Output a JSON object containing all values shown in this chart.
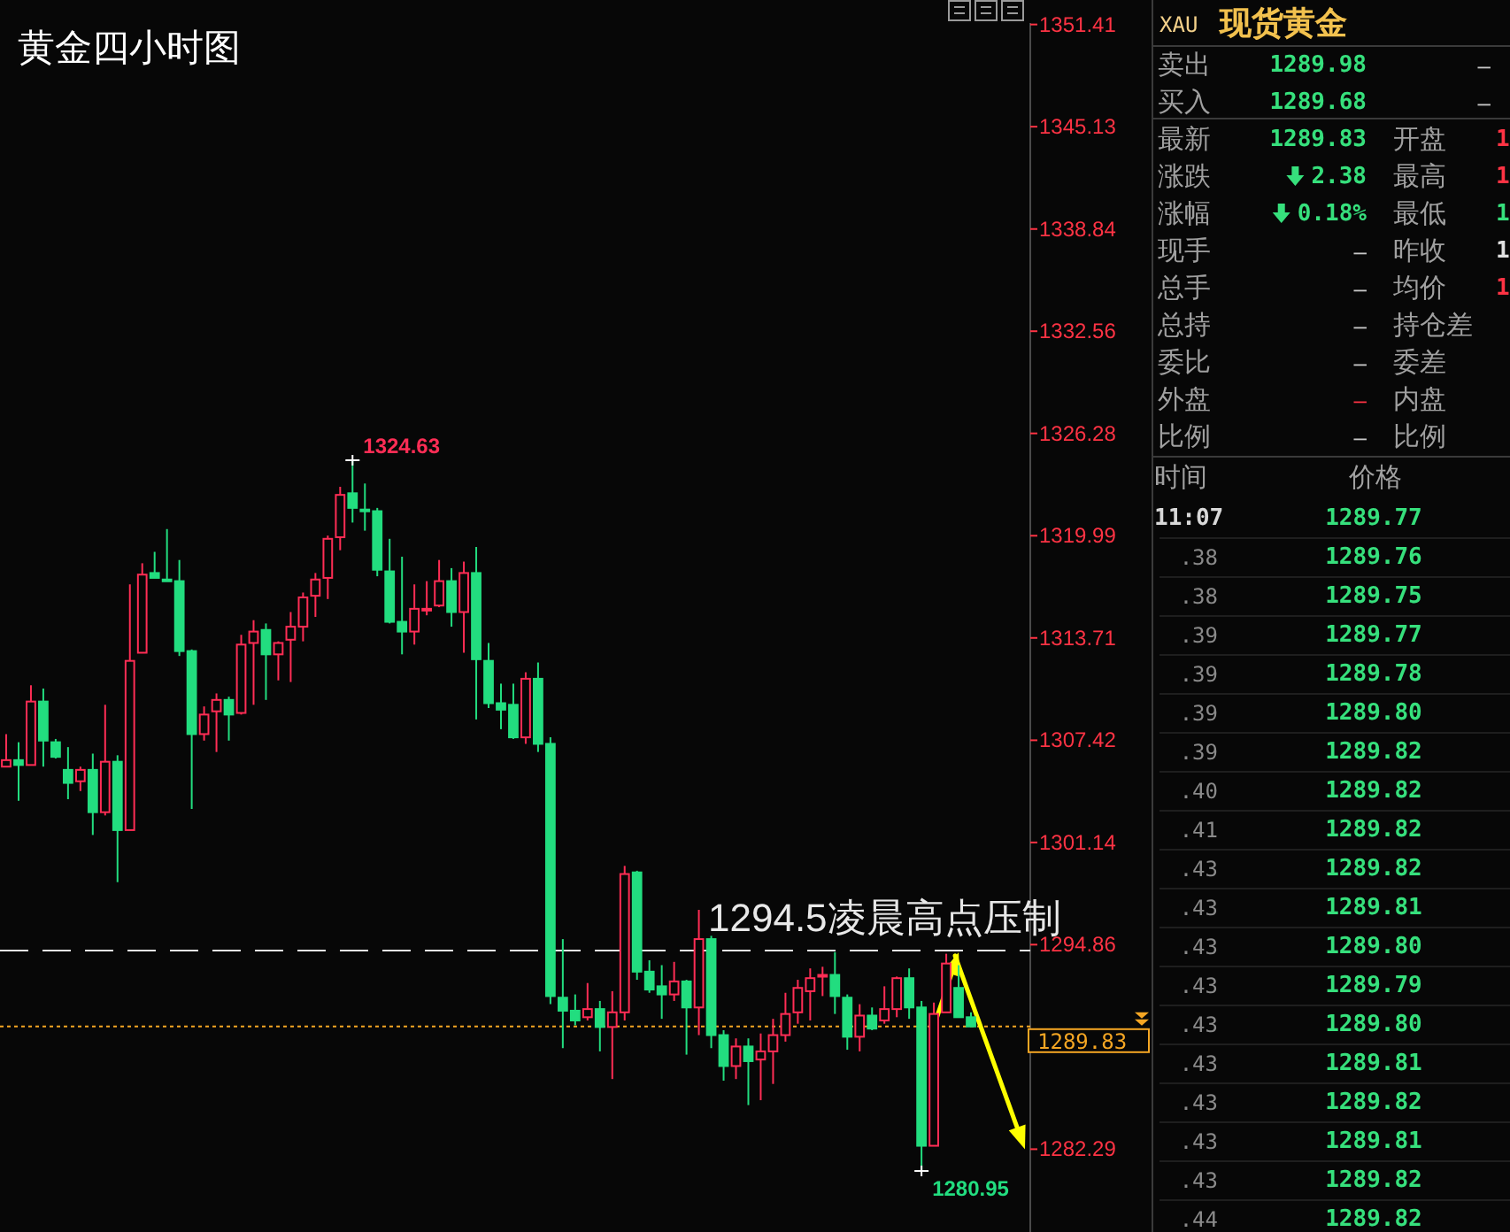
{
  "chart_data": [
    {
      "type": "candlestick",
      "title": "黄金四小时图",
      "categories": [
        null,
        null,
        null,
        null,
        null,
        null,
        null,
        null,
        null,
        null,
        null,
        null,
        null,
        null,
        null,
        null,
        null,
        null,
        null,
        null,
        null,
        null,
        null,
        null,
        null,
        null,
        null,
        null,
        null,
        null,
        null,
        null,
        null,
        null,
        null,
        null,
        null,
        null,
        null,
        null,
        null,
        null,
        null,
        null,
        null,
        null,
        null,
        null,
        null,
        null,
        null,
        null,
        null,
        null,
        null,
        null,
        null,
        null,
        null,
        null,
        null,
        null,
        null,
        null,
        null,
        null,
        null,
        null,
        null,
        null,
        null,
        null,
        null,
        null,
        null,
        null,
        null,
        null,
        null
      ],
      "ohlc": [
        [
          1305.8,
          1307.8,
          1305.8,
          1306.2
        ],
        [
          1306.2,
          1307.3,
          1303.7,
          1305.9
        ],
        [
          1305.9,
          1310.8,
          1305.9,
          1309.8
        ],
        [
          1309.8,
          1310.6,
          1305.8,
          1307.4
        ],
        [
          1307.3,
          1307.5,
          1306.3,
          1306.4
        ],
        [
          1305.6,
          1307.0,
          1303.8,
          1304.8
        ],
        [
          1304.9,
          1305.8,
          1304.3,
          1305.6
        ],
        [
          1305.6,
          1306.6,
          1301.6,
          1303.0
        ],
        [
          1303.0,
          1309.6,
          1302.8,
          1306.1
        ],
        [
          1306.1,
          1306.5,
          1298.7,
          1301.9
        ],
        [
          1301.9,
          1317.0,
          1301.9,
          1312.3
        ],
        [
          1312.8,
          1318.3,
          1312.8,
          1317.6
        ],
        [
          1317.7,
          1319.0,
          1317.4,
          1317.4
        ],
        [
          1317.3,
          1320.4,
          1317.2,
          1317.2
        ],
        [
          1317.2,
          1318.5,
          1312.6,
          1312.9
        ],
        [
          1312.9,
          1313.0,
          1303.2,
          1307.8
        ],
        [
          1307.8,
          1309.5,
          1307.4,
          1309.0
        ],
        [
          1309.2,
          1310.3,
          1306.7,
          1309.9
        ],
        [
          1309.9,
          1310.1,
          1307.4,
          1309.0
        ],
        [
          1309.1,
          1313.9,
          1309.0,
          1313.3
        ],
        [
          1313.4,
          1314.8,
          1309.6,
          1314.1
        ],
        [
          1314.2,
          1314.6,
          1309.9,
          1312.7
        ],
        [
          1312.7,
          1313.5,
          1311.1,
          1313.4
        ],
        [
          1313.6,
          1315.3,
          1311.0,
          1314.4
        ],
        [
          1314.4,
          1316.5,
          1313.5,
          1316.2
        ],
        [
          1316.3,
          1317.7,
          1315.0,
          1317.3
        ],
        [
          1317.4,
          1320.0,
          1316.1,
          1319.8
        ],
        [
          1319.9,
          1323.0,
          1319.1,
          1322.5
        ],
        [
          1322.6,
          1324.63,
          1320.8,
          1321.7
        ],
        [
          1321.6,
          1323.2,
          1320.3,
          1321.5
        ],
        [
          1321.5,
          1321.7,
          1317.5,
          1317.9
        ],
        [
          1317.8,
          1319.8,
          1314.6,
          1314.7
        ],
        [
          1314.7,
          1318.7,
          1312.7,
          1314.1
        ],
        [
          1314.1,
          1317.0,
          1313.3,
          1315.5
        ],
        [
          1315.4,
          1317.2,
          1315.1,
          1315.5
        ],
        [
          1315.7,
          1318.5,
          1315.6,
          1317.2
        ],
        [
          1317.2,
          1318.0,
          1314.4,
          1315.3
        ],
        [
          1315.3,
          1318.4,
          1312.8,
          1317.7
        ],
        [
          1317.7,
          1319.3,
          1308.7,
          1312.4
        ],
        [
          1312.3,
          1313.4,
          1309.4,
          1309.7
        ],
        [
          1309.7,
          1310.9,
          1308.1,
          1309.3
        ],
        [
          1309.6,
          1310.9,
          1307.5,
          1307.6
        ],
        [
          1307.6,
          1311.6,
          1307.2,
          1311.2
        ],
        [
          1311.2,
          1312.2,
          1306.7,
          1307.2
        ],
        [
          1307.2,
          1307.6,
          1291.2,
          1291.7
        ],
        [
          1291.6,
          1295.2,
          1288.5,
          1290.8
        ],
        [
          1290.8,
          1291.8,
          1289.9,
          1290.2
        ],
        [
          1290.4,
          1292.5,
          1290.2,
          1290.9
        ],
        [
          1290.9,
          1291.4,
          1288.3,
          1289.8
        ],
        [
          1289.8,
          1292.0,
          1286.6,
          1290.7
        ],
        [
          1290.7,
          1299.7,
          1290.2,
          1299.2
        ],
        [
          1299.3,
          1299.4,
          1292.7,
          1293.2
        ],
        [
          1293.2,
          1293.9,
          1291.9,
          1292.1
        ],
        [
          1292.3,
          1293.6,
          1290.3,
          1291.8
        ],
        [
          1291.8,
          1293.8,
          1291.4,
          1292.6
        ],
        [
          1292.6,
          1292.7,
          1288.1,
          1291.0
        ],
        [
          1291.0,
          1297.0,
          1289.3,
          1295.2
        ],
        [
          1295.2,
          1295.4,
          1288.5,
          1289.3
        ],
        [
          1289.3,
          1289.6,
          1286.5,
          1287.4
        ],
        [
          1287.4,
          1289.1,
          1286.6,
          1288.6
        ],
        [
          1288.6,
          1289.1,
          1285.0,
          1287.7
        ],
        [
          1287.8,
          1289.4,
          1285.3,
          1288.3
        ],
        [
          1288.3,
          1290.3,
          1286.3,
          1289.3
        ],
        [
          1289.3,
          1291.9,
          1288.9,
          1290.6
        ],
        [
          1290.7,
          1292.7,
          1290.0,
          1292.2
        ],
        [
          1292.0,
          1293.4,
          1290.2,
          1292.8
        ],
        [
          1292.9,
          1293.5,
          1291.7,
          1293.0
        ],
        [
          1293.0,
          1294.4,
          1290.6,
          1291.7
        ],
        [
          1291.6,
          1291.8,
          1288.4,
          1289.2
        ],
        [
          1289.2,
          1291.2,
          1288.3,
          1290.5
        ],
        [
          1290.5,
          1291.0,
          1289.6,
          1289.7
        ],
        [
          1290.2,
          1292.3,
          1290.0,
          1290.9
        ],
        [
          1290.9,
          1292.9,
          1290.4,
          1292.8
        ],
        [
          1292.8,
          1293.4,
          1290.3,
          1291.0
        ],
        [
          1291.0,
          1291.4,
          1280.95,
          1282.5
        ],
        [
          1282.5,
          1291.3,
          1282.5,
          1290.6
        ],
        [
          1290.7,
          1294.3,
          1290.7,
          1293.7
        ],
        [
          1292.2,
          1293.6,
          1290.4,
          1290.4
        ],
        [
          1290.4,
          1290.7,
          1289.83,
          1289.83
        ]
      ],
      "colors": [
        "#ff2d55",
        "#22dd7f",
        "#ff2d55",
        "#22dd7f",
        "#22dd7f",
        "#22dd7f",
        "#ff2d55",
        "#22dd7f",
        "#ff2d55",
        "#22dd7f",
        "#ff2d55",
        "#ff2d55",
        "#22dd7f",
        "#22dd7f",
        "#22dd7f",
        "#22dd7f",
        "#ff2d55",
        "#ff2d55",
        "#22dd7f",
        "#ff2d55",
        "#ff2d55",
        "#22dd7f",
        "#ff2d55",
        "#ff2d55",
        "#ff2d55",
        "#ff2d55",
        "#ff2d55",
        "#ff2d55",
        "#22dd7f",
        "#22dd7f",
        "#22dd7f",
        "#22dd7f",
        "#22dd7f",
        "#ff2d55",
        "#ff2d55",
        "#ff2d55",
        "#22dd7f",
        "#ff2d55",
        "#22dd7f",
        "#22dd7f",
        "#22dd7f",
        "#22dd7f",
        "#ff2d55",
        "#22dd7f",
        "#22dd7f",
        "#22dd7f",
        "#22dd7f",
        "#ff2d55",
        "#22dd7f",
        "#ff2d55",
        "#ff2d55",
        "#22dd7f",
        "#22dd7f",
        "#22dd7f",
        "#ff2d55",
        "#22dd7f",
        "#ff2d55",
        "#22dd7f",
        "#22dd7f",
        "#ff2d55",
        "#22dd7f",
        "#ff2d55",
        "#ff2d55",
        "#ff2d55",
        "#ff2d55",
        "#ff2d55",
        "#ff2d55",
        "#22dd7f",
        "#22dd7f",
        "#ff2d55",
        "#22dd7f",
        "#ff2d55",
        "#ff2d55",
        "#22dd7f",
        "#22dd7f",
        "#ff2d55",
        "#ff2d55",
        "#22dd7f",
        "#22dd7f"
      ],
      "ylim": [
        1277.2,
        1351.5
      ],
      "yticks": [
        1351.41,
        1345.13,
        1338.84,
        1332.56,
        1326.28,
        1319.99,
        1313.71,
        1307.42,
        1301.14,
        1294.86,
        1282.29
      ],
      "ref_lines": [
        {
          "axis": "y",
          "value": 1294.5,
          "label": "1294.5凌晨高点压制",
          "color": "#e8e8e8",
          "line_style": "dashed"
        },
        {
          "axis": "y",
          "value": 1289.83,
          "label": "1289.83",
          "color": "#f5a623",
          "line_style": "dotted"
        }
      ],
      "annotations": [
        "1324.63",
        "1280.95"
      ]
    },
    {
      "type": "other",
      "title": "现货黄金",
      "annotations": [
        "XAU",
        "卖出",
        "1289.98",
        "–",
        "买入",
        "1289.68",
        "–",
        "最新",
        "1289.83",
        "开盘",
        "1",
        "涨跌",
        "2.38",
        "最高",
        "1",
        "涨幅",
        "0.18%",
        "最低",
        "1",
        "现手",
        "–",
        "昨收",
        "1",
        "总手",
        "–",
        "均价",
        "1",
        "总持",
        "–",
        "持仓差",
        "委比",
        "–",
        "委差",
        "外盘",
        "–",
        "内盘",
        "比例",
        "–",
        "比例",
        "时间",
        "价格",
        "11:07",
        "1289.77",
        ".38",
        "1289.76",
        ".38",
        "1289.75",
        ".39",
        "1289.77",
        ".39",
        "1289.78",
        ".39",
        "1289.80",
        ".39",
        "1289.82",
        ".40",
        "1289.82",
        ".41",
        "1289.82",
        ".43",
        "1289.82",
        ".43",
        "1289.81",
        ".43",
        "1289.80",
        ".43",
        "1289.79",
        ".43",
        "1289.80",
        ".43",
        "1289.81",
        ".43",
        "1289.82",
        ".43",
        "1289.81",
        ".43",
        "1289.82",
        ".44",
        "1289.82"
      ]
    }
  ]
}
